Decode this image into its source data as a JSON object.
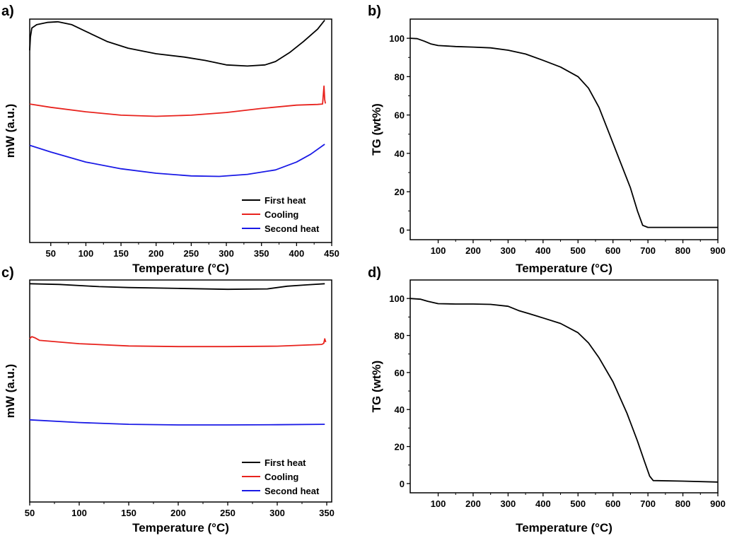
{
  "chart_data": [
    {
      "panel": "a)",
      "type": "line",
      "xlabel": "Temperature (°C)",
      "ylabel": "mW (a.u.)",
      "xlim": [
        20,
        450
      ],
      "ylim": [
        0,
        1
      ],
      "xticks": [
        50,
        100,
        150,
        200,
        250,
        300,
        350,
        400,
        450
      ],
      "yticks": [],
      "legend_position": "bottom-right",
      "series": [
        {
          "name": "First heat",
          "color": "#000000",
          "points": [
            [
              20,
              0.86
            ],
            [
              21,
              0.92
            ],
            [
              23,
              0.96
            ],
            [
              30,
              0.975
            ],
            [
              45,
              0.985
            ],
            [
              60,
              0.988
            ],
            [
              80,
              0.975
            ],
            [
              100,
              0.945
            ],
            [
              130,
              0.9
            ],
            [
              160,
              0.87
            ],
            [
              200,
              0.845
            ],
            [
              240,
              0.83
            ],
            [
              270,
              0.815
            ],
            [
              300,
              0.795
            ],
            [
              330,
              0.79
            ],
            [
              355,
              0.795
            ],
            [
              370,
              0.81
            ],
            [
              390,
              0.85
            ],
            [
              410,
              0.9
            ],
            [
              430,
              0.955
            ],
            [
              440,
              0.995
            ]
          ]
        },
        {
          "name": "Cooling",
          "color": "#e8231e",
          "points": [
            [
              20,
              0.62
            ],
            [
              50,
              0.605
            ],
            [
              100,
              0.585
            ],
            [
              150,
              0.57
            ],
            [
              200,
              0.565
            ],
            [
              250,
              0.57
            ],
            [
              300,
              0.582
            ],
            [
              350,
              0.6
            ],
            [
              400,
              0.615
            ],
            [
              430,
              0.618
            ],
            [
              437,
              0.62
            ],
            [
              438,
              0.66
            ],
            [
              439,
              0.7
            ],
            [
              440,
              0.64
            ],
            [
              441,
              0.622
            ]
          ]
        },
        {
          "name": "Second heat",
          "color": "#1a1ae6",
          "points": [
            [
              20,
              0.435
            ],
            [
              50,
              0.405
            ],
            [
              100,
              0.36
            ],
            [
              150,
              0.33
            ],
            [
              200,
              0.31
            ],
            [
              250,
              0.298
            ],
            [
              290,
              0.296
            ],
            [
              330,
              0.305
            ],
            [
              370,
              0.325
            ],
            [
              400,
              0.36
            ],
            [
              420,
              0.395
            ],
            [
              440,
              0.44
            ]
          ]
        }
      ]
    },
    {
      "panel": "b)",
      "type": "line",
      "xlabel": "Temperature (°C)",
      "ylabel": "TG (wt%)",
      "xlim": [
        20,
        900
      ],
      "ylim": [
        -5,
        110
      ],
      "xticks": [
        100,
        200,
        300,
        400,
        500,
        600,
        700,
        800,
        900
      ],
      "yticks": [
        0,
        20,
        40,
        60,
        80,
        100
      ],
      "series": [
        {
          "name": "",
          "color": "#000000",
          "points": [
            [
              20,
              100
            ],
            [
              40,
              99.8
            ],
            [
              60,
              98.5
            ],
            [
              80,
              97
            ],
            [
              100,
              96.2
            ],
            [
              150,
              95.7
            ],
            [
              200,
              95.4
            ],
            [
              250,
              95
            ],
            [
              300,
              93.8
            ],
            [
              350,
              91.8
            ],
            [
              400,
              88.5
            ],
            [
              450,
              85
            ],
            [
              500,
              80
            ],
            [
              530,
              74
            ],
            [
              560,
              64
            ],
            [
              590,
              50
            ],
            [
              620,
              36
            ],
            [
              650,
              22
            ],
            [
              670,
              10
            ],
            [
              685,
              2.5
            ],
            [
              700,
              1.4
            ],
            [
              900,
              1.4
            ]
          ]
        }
      ]
    },
    {
      "panel": "c)",
      "type": "line",
      "xlabel": "Temperature (°C)",
      "ylabel": "mW (a.u.)",
      "xlim": [
        50,
        355
      ],
      "ylim": [
        0,
        1
      ],
      "xticks": [
        50,
        100,
        150,
        200,
        250,
        300,
        350
      ],
      "yticks": [],
      "legend_position": "bottom-right",
      "series": [
        {
          "name": "First heat",
          "color": "#000000",
          "points": [
            [
              50,
              0.983
            ],
            [
              80,
              0.98
            ],
            [
              120,
              0.97
            ],
            [
              150,
              0.966
            ],
            [
              200,
              0.962
            ],
            [
              250,
              0.958
            ],
            [
              290,
              0.96
            ],
            [
              310,
              0.972
            ],
            [
              330,
              0.978
            ],
            [
              348,
              0.983
            ]
          ]
        },
        {
          "name": "Cooling",
          "color": "#e8231e",
          "points": [
            [
              50,
              0.735
            ],
            [
              52,
              0.745
            ],
            [
              55,
              0.74
            ],
            [
              60,
              0.728
            ],
            [
              100,
              0.713
            ],
            [
              150,
              0.703
            ],
            [
              200,
              0.7
            ],
            [
              250,
              0.7
            ],
            [
              300,
              0.702
            ],
            [
              345,
              0.71
            ],
            [
              347,
              0.715
            ],
            [
              348,
              0.735
            ],
            [
              349,
              0.72
            ]
          ]
        },
        {
          "name": "Second heat",
          "color": "#1a1ae6",
          "points": [
            [
              50,
              0.37
            ],
            [
              100,
              0.358
            ],
            [
              150,
              0.35
            ],
            [
              200,
              0.347
            ],
            [
              250,
              0.347
            ],
            [
              300,
              0.348
            ],
            [
              348,
              0.35
            ]
          ]
        }
      ]
    },
    {
      "panel": "d)",
      "type": "line",
      "xlabel": "Temperature (°C)",
      "ylabel": "TG (wt%)",
      "xlim": [
        20,
        900
      ],
      "ylim": [
        -5,
        110
      ],
      "xticks": [
        100,
        200,
        300,
        400,
        500,
        600,
        700,
        800,
        900
      ],
      "yticks": [
        0,
        20,
        40,
        60,
        80,
        100
      ],
      "series": [
        {
          "name": "",
          "color": "#000000",
          "points": [
            [
              20,
              100
            ],
            [
              50,
              99.6
            ],
            [
              70,
              98.5
            ],
            [
              100,
              97.2
            ],
            [
              150,
              97
            ],
            [
              200,
              97
            ],
            [
              250,
              96.8
            ],
            [
              300,
              95.8
            ],
            [
              330,
              93.5
            ],
            [
              360,
              91.8
            ],
            [
              400,
              89.5
            ],
            [
              450,
              86.5
            ],
            [
              500,
              81.5
            ],
            [
              530,
              76
            ],
            [
              560,
              68
            ],
            [
              600,
              55
            ],
            [
              640,
              38
            ],
            [
              670,
              23
            ],
            [
              690,
              12
            ],
            [
              705,
              4
            ],
            [
              715,
              1.6
            ],
            [
              800,
              1.3
            ],
            [
              900,
              0.8
            ]
          ]
        }
      ]
    }
  ]
}
